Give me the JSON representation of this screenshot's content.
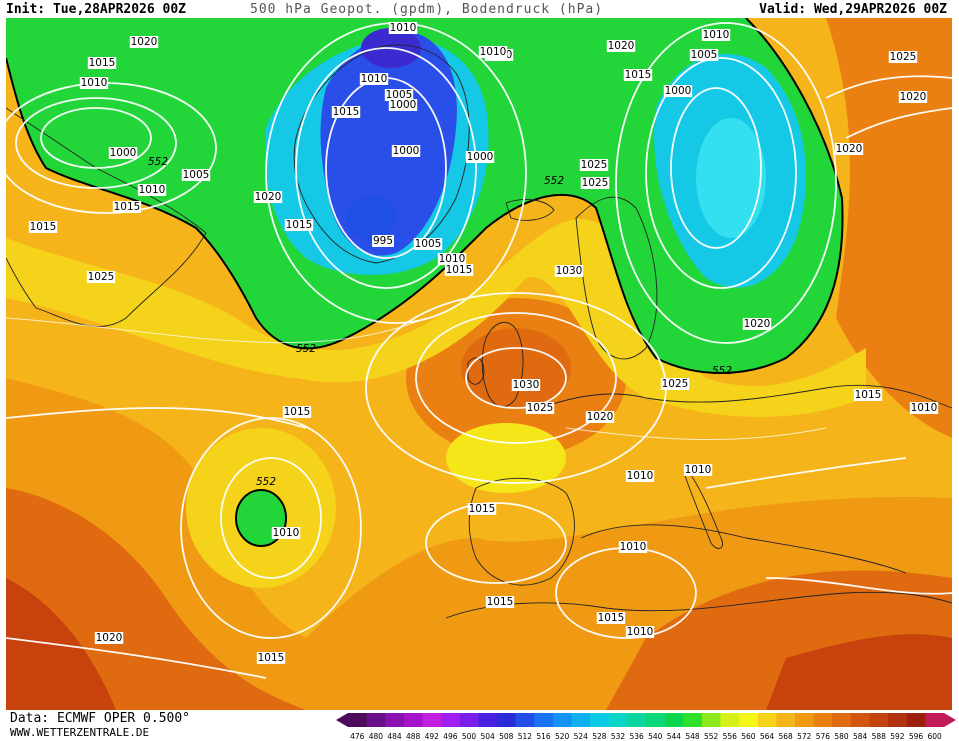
{
  "header": {
    "init": "Init: Tue,28APR2026 00Z",
    "title": "500 hPa Geopot. (gpdm), Bodendruck (hPa)",
    "valid": "Valid: Wed,29APR2026 00Z"
  },
  "footer": {
    "data_source": "Data: ECMWF OPER 0.500°",
    "website": "WWW.WETTERZENTRALE.DE"
  },
  "colorbar": {
    "ticks": [
      "476",
      "480",
      "484",
      "488",
      "492",
      "496",
      "500",
      "504",
      "508",
      "512",
      "516",
      "520",
      "524",
      "528",
      "532",
      "536",
      "540",
      "544",
      "548",
      "552",
      "556",
      "560",
      "564",
      "568",
      "572",
      "576",
      "580",
      "584",
      "588",
      "592",
      "596",
      "600"
    ],
    "colors": [
      "#4b0a5c",
      "#6a0d8a",
      "#8a10b0",
      "#a514c9",
      "#c21ee0",
      "#a020f0",
      "#7b1fe8",
      "#4b1fe0",
      "#2a2ad8",
      "#1f4fe6",
      "#1a73f0",
      "#1593f5",
      "#10b0f0",
      "#0ccbe6",
      "#0ad6c8",
      "#0ad6a0",
      "#0ad67a",
      "#0ad650",
      "#2fe02a",
      "#8be81a",
      "#d8f01a",
      "#f5f51a",
      "#f5d31a",
      "#f5b41a",
      "#f09a14",
      "#ea8012",
      "#e06a10",
      "#d2560e",
      "#c2440e",
      "#b0320e",
      "#9c200e",
      "#c01a5a"
    ]
  },
  "pressure_labels": [
    "1010",
    "1010",
    "1020",
    "1015",
    "1010",
    "1000",
    "552",
    "1005",
    "1010",
    "1015",
    "1020",
    "1015",
    "1025",
    "1015",
    "1015",
    "1010",
    "1005",
    "1000",
    "1000",
    "995",
    "1005",
    "1010",
    "1015",
    "1000",
    "1010",
    "1020",
    "1015",
    "1005",
    "1000",
    "1010",
    "1025",
    "552",
    "1025",
    "1020",
    "1020",
    "1025",
    "1030",
    "552",
    "1020",
    "552",
    "1030",
    "1025",
    "1020",
    "1025",
    "1015",
    "1015",
    "1010",
    "552",
    "1010",
    "1015",
    "1010",
    "1010",
    "1010",
    "1015",
    "1010",
    "1015",
    "1020",
    "1015"
  ],
  "map_colors": {
    "green": "#22d63a",
    "cyan": "#14c8e6",
    "blue": "#2a4ee8",
    "yellow": "#f5e61a",
    "orange": "#f09a14",
    "deep_orange": "#e06a10",
    "red": "#c8420e"
  }
}
